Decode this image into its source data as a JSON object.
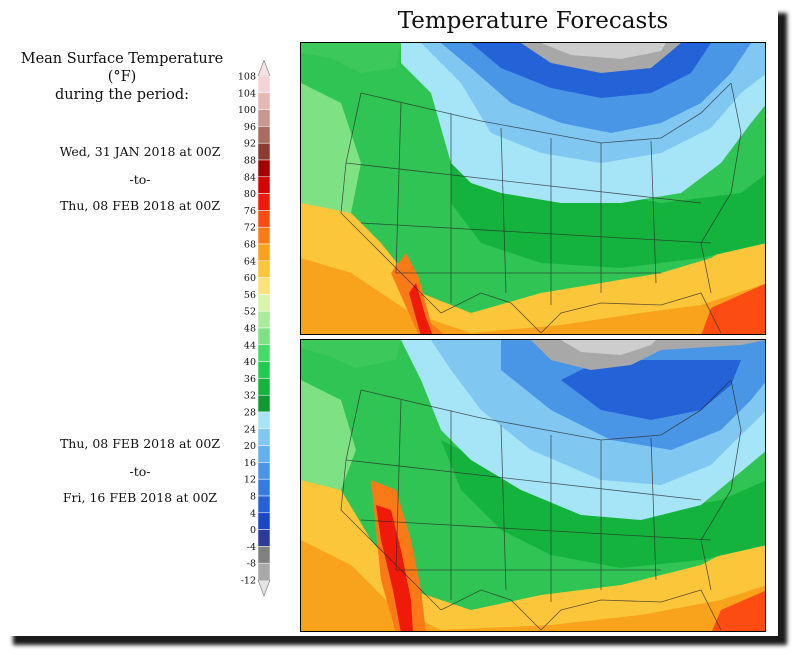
{
  "title": "Temperature Forecasts",
  "legend": {
    "title_line1": "Mean Surface Temperature (°F)",
    "title_line2": "during the period:",
    "levels": [
      {
        "label": "108",
        "color": "#f4d4d4"
      },
      {
        "label": "104",
        "color": "#e6b8b4"
      },
      {
        "label": "100",
        "color": "#c99791"
      },
      {
        "label": "96",
        "color": "#a96b62"
      },
      {
        "label": "92",
        "color": "#8b3c32"
      },
      {
        "label": "88",
        "color": "#a40000"
      },
      {
        "label": "84",
        "color": "#d40000"
      },
      {
        "label": "80",
        "color": "#f01a0a"
      },
      {
        "label": "76",
        "color": "#fc4c12"
      },
      {
        "label": "72",
        "color": "#fa7a18"
      },
      {
        "label": "68",
        "color": "#f9a21c"
      },
      {
        "label": "64",
        "color": "#fcc63a"
      },
      {
        "label": "60",
        "color": "#fbe27a"
      },
      {
        "label": "56",
        "color": "#d8f4a8"
      },
      {
        "label": "52",
        "color": "#a8ec9c"
      },
      {
        "label": "48",
        "color": "#7ee284"
      },
      {
        "label": "44",
        "color": "#44dc68"
      },
      {
        "label": "40",
        "color": "#22cc50"
      },
      {
        "label": "36",
        "color": "#14b33e"
      },
      {
        "label": "32",
        "color": "#0f9a34"
      },
      {
        "label": "28",
        "color": "#a6e4f8"
      },
      {
        "label": "24",
        "color": "#80c8f2"
      },
      {
        "label": "20",
        "color": "#62b0ec"
      },
      {
        "label": "16",
        "color": "#4a96e6"
      },
      {
        "label": "12",
        "color": "#347ce0"
      },
      {
        "label": "8",
        "color": "#2462d8"
      },
      {
        "label": "4",
        "color": "#1a46c8"
      },
      {
        "label": "0",
        "color": "#2c3a9a"
      },
      {
        "label": "-4",
        "color": "#808080"
      },
      {
        "label": "-8",
        "color": "#a8a8a8"
      },
      {
        "label": "-12",
        "color": "#cdcdcd"
      }
    ],
    "top_color": "#f6e2e2",
    "bottom_color": "#e4e4e4"
  },
  "periods": [
    {
      "start": "Wed, 31 JAN 2018 at 00Z",
      "sep": "-to-",
      "end": "Thu, 08 FEB 2018 at 00Z"
    },
    {
      "start": "Thu, 08 FEB 2018 at 00Z",
      "sep": "-to-",
      "end": "Fri, 16 FEB 2018 at 00Z"
    }
  ]
}
